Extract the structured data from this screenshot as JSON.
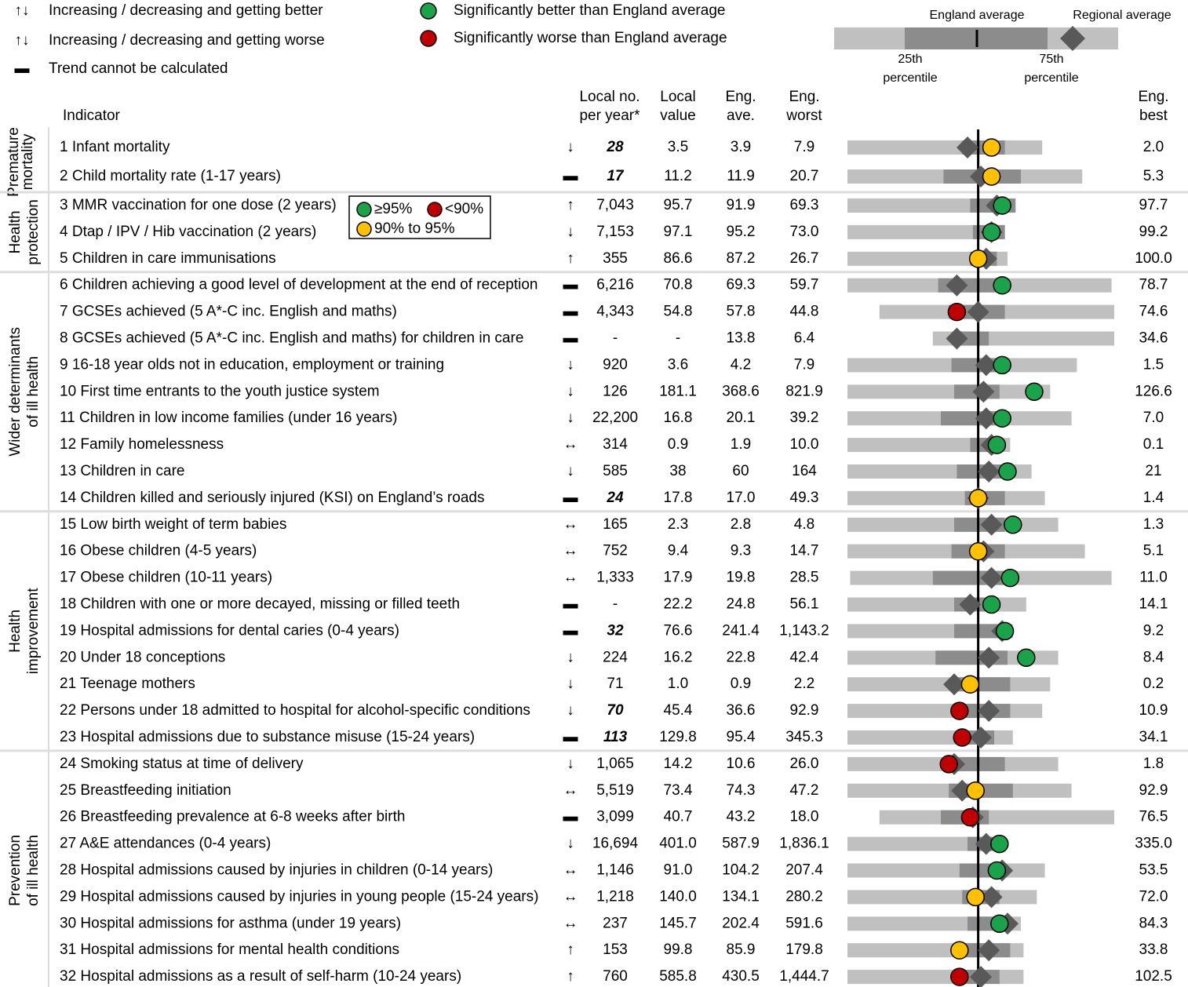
{
  "legend": {
    "trends": [
      {
        "symbol": "↑↓",
        "color": "#1aa34a",
        "label": "Increasing / decreasing and getting better"
      },
      {
        "symbol": "↑↓",
        "color": "#c00000",
        "label": "Increasing / decreasing and getting worse"
      },
      {
        "symbol": "▬",
        "color": "#000000",
        "label": "Trend cannot be calculated"
      }
    ],
    "markers": [
      {
        "color": "#1aa34a",
        "label": "Significantly better than England average"
      },
      {
        "color": "#c00000",
        "label": "Significantly worse than England average"
      }
    ],
    "spine": {
      "england": "England average",
      "regional": "Regional average",
      "p25": [
        "25th",
        "percentile"
      ],
      "p75": [
        "75th",
        "percentile"
      ]
    }
  },
  "header": {
    "indicator": "Indicator",
    "local_no": [
      "Local no.",
      "per year*"
    ],
    "local_value": [
      "Local",
      "value"
    ],
    "eng_ave": [
      "Eng.",
      "ave."
    ],
    "eng_worst": [
      "Eng.",
      "worst"
    ],
    "eng_best": [
      "Eng.",
      "best"
    ]
  },
  "inset": [
    {
      "label": "≥95%",
      "color": "#1aa34a"
    },
    {
      "label": "<90%",
      "color": "#c00000"
    },
    {
      "label": "90% to 95%",
      "color": "#ffc000"
    }
  ],
  "spine_settings": {
    "scale": [
      0,
      100
    ],
    "england_line": 49,
    "light": "#c0c0c0",
    "dark": "#8c8c8c",
    "regional": "#595959"
  },
  "groups": [
    {
      "label": [
        "Premature",
        "mortality"
      ],
      "rows": [
        {
          "indicator": "1 Infant mortality",
          "trend": "↓",
          "trend_color": "#1aa34a",
          "local_no": "28",
          "bold": true,
          "local_value": "3.5",
          "eng_ave": "3.9",
          "eng_worst": "7.9",
          "eng_best": "2.0",
          "spine": [
            0,
            43,
            59,
            73,
            45,
            54
          ],
          "local_color": "#ffc000"
        },
        {
          "indicator": "2 Child mortality rate (1-17 years)",
          "trend": "▬",
          "trend_color": "#000000",
          "local_no": "17",
          "bold": true,
          "local_value": "11.2",
          "eng_ave": "11.9",
          "eng_worst": "20.7",
          "eng_best": "5.3",
          "spine": [
            0,
            36,
            65,
            88,
            50,
            54
          ],
          "local_color": "#ffc000"
        }
      ]
    },
    {
      "label": [
        "Health",
        "protection"
      ],
      "rows": [
        {
          "indicator": "3 MMR vaccination for one dose (2 years)",
          "trend": "↑",
          "trend_color": "#1aa34a",
          "local_no": "7,043",
          "local_value": "95.7",
          "eng_ave": "91.9",
          "eng_worst": "69.3",
          "eng_best": "97.7",
          "spine": [
            0,
            46,
            63,
            63,
            56,
            58
          ],
          "local_color": "#1aa34a"
        },
        {
          "indicator": "4 Dtap / IPV / Hib vaccination (2 years)",
          "trend": "↓",
          "trend_color": "#c00000",
          "local_no": "7,153",
          "local_value": "97.1",
          "eng_ave": "95.2",
          "eng_worst": "73.0",
          "eng_best": "99.2",
          "spine": [
            0,
            47,
            59,
            59,
            54,
            54
          ],
          "local_color": "#1aa34a"
        },
        {
          "indicator": "5 Children in care immunisations",
          "trend": "↑",
          "trend_color": "#1aa34a",
          "local_no": "355",
          "local_value": "86.6",
          "eng_ave": "87.2",
          "eng_worst": "26.7",
          "eng_best": "100.0",
          "spine": [
            0,
            46,
            56,
            60,
            52,
            49
          ],
          "local_color": "#ffc000"
        }
      ]
    },
    {
      "label": [
        "Wider determinants",
        "of ill health"
      ],
      "rows": [
        {
          "indicator": "6 Children achieving a good level of development at the end of reception",
          "trend": "▬",
          "trend_color": "#000000",
          "local_no": "6,216",
          "local_value": "70.8",
          "eng_ave": "69.3",
          "eng_worst": "59.7",
          "eng_best": "78.7",
          "spine": [
            0,
            34,
            58,
            99,
            41,
            58
          ],
          "local_color": "#1aa34a"
        },
        {
          "indicator": "7 GCSEs achieved (5 A*-C inc. English and maths)",
          "trend": "▬",
          "trend_color": "#000000",
          "local_no": "4,343",
          "local_value": "54.8",
          "eng_ave": "57.8",
          "eng_worst": "44.8",
          "eng_best": "74.6",
          "spine": [
            12,
            38,
            59,
            100,
            49,
            41
          ],
          "local_color": "#c00000"
        },
        {
          "indicator": "8 GCSEs achieved (5 A*-C inc. English and maths) for children in care",
          "trend": "▬",
          "trend_color": "#000000",
          "local_no": "-",
          "local_value": "-",
          "eng_ave": "13.8",
          "eng_worst": "6.4",
          "eng_best": "34.6",
          "spine": [
            32,
            40,
            53,
            100,
            41,
            null
          ]
        },
        {
          "indicator": "9 16-18 year olds not in education, employment or training",
          "trend": "↓",
          "trend_color": "#1aa34a",
          "local_no": "920",
          "local_value": "3.6",
          "eng_ave": "4.2",
          "eng_worst": "7.9",
          "eng_best": "1.5",
          "spine": [
            0,
            39,
            56,
            86,
            52,
            58
          ],
          "local_color": "#1aa34a"
        },
        {
          "indicator": "10 First time entrants to the youth justice system",
          "trend": "↓",
          "trend_color": "#1aa34a",
          "local_no": "126",
          "local_value": "181.1",
          "eng_ave": "368.6",
          "eng_worst": "821.9",
          "eng_best": "126.6",
          "spine": [
            0,
            40,
            57,
            76,
            51,
            70
          ],
          "local_color": "#1aa34a"
        },
        {
          "indicator": "11 Children in low income families (under 16 years)",
          "trend": "↓",
          "trend_color": "#1aa34a",
          "local_no": "22,200",
          "local_value": "16.8",
          "eng_ave": "20.1",
          "eng_worst": "39.2",
          "eng_best": "7.0",
          "spine": [
            0,
            35,
            59,
            84,
            52,
            58
          ],
          "local_color": "#1aa34a"
        },
        {
          "indicator": "12 Family homelessness",
          "trend": "↔",
          "trend_color": "#ffc000",
          "local_no": "314",
          "local_value": "0.9",
          "eng_ave": "1.9",
          "eng_worst": "10.0",
          "eng_best": "0.1",
          "spine": [
            0,
            46,
            57,
            61,
            54,
            56
          ],
          "local_color": "#1aa34a"
        },
        {
          "indicator": "13 Children in care",
          "trend": "↓",
          "trend_color": "#1aa34a",
          "local_no": "585",
          "local_value": "38",
          "eng_ave": "60",
          "eng_worst": "164",
          "eng_best": "21",
          "spine": [
            0,
            41,
            59,
            69,
            53,
            60
          ],
          "local_color": "#1aa34a"
        },
        {
          "indicator": "14 Children killed and seriously injured (KSI) on England’s roads",
          "trend": "▬",
          "trend_color": "#000000",
          "local_no": "24",
          "bold": true,
          "local_value": "17.8",
          "eng_ave": "17.0",
          "eng_worst": "49.3",
          "eng_best": "1.4",
          "spine": [
            0,
            44,
            59,
            74,
            49,
            49
          ],
          "local_color": "#ffc000"
        }
      ]
    },
    {
      "label": [
        "Health",
        "improvement"
      ],
      "rows": [
        {
          "indicator": "15 Low birth weight of term babies",
          "trend": "↔",
          "trend_color": "#ffc000",
          "local_no": "165",
          "local_value": "2.3",
          "eng_ave": "2.8",
          "eng_worst": "4.8",
          "eng_best": "1.3",
          "spine": [
            0,
            40,
            59,
            79,
            54,
            62
          ],
          "local_color": "#1aa34a"
        },
        {
          "indicator": "16 Obese children (4-5 years)",
          "trend": "↔",
          "trend_color": "#ffc000",
          "local_no": "752",
          "local_value": "9.4",
          "eng_ave": "9.3",
          "eng_worst": "14.7",
          "eng_best": "5.1",
          "spine": [
            0,
            39,
            59,
            89,
            51,
            49
          ],
          "local_color": "#ffc000"
        },
        {
          "indicator": "17 Obese children (10-11 years)",
          "trend": "↔",
          "trend_color": "#ffc000",
          "local_no": "1,333",
          "local_value": "17.9",
          "eng_ave": "19.8",
          "eng_worst": "28.5",
          "eng_best": "11.0",
          "spine": [
            1,
            32,
            59,
            99,
            54,
            61
          ],
          "local_color": "#1aa34a"
        },
        {
          "indicator": "18 Children with one or more decayed, missing or filled teeth",
          "trend": "▬",
          "trend_color": "#000000",
          "local_no": "-",
          "local_value": "22.2",
          "eng_ave": "24.8",
          "eng_worst": "56.1",
          "eng_best": "14.1",
          "spine": [
            0,
            40,
            56,
            67,
            46,
            54
          ],
          "local_color": "#1aa34a"
        },
        {
          "indicator": "19 Hospital admissions for dental caries (0-4 years)",
          "trend": "▬",
          "trend_color": "#000000",
          "local_no": "32",
          "bold": true,
          "local_value": "76.6",
          "eng_ave": "241.4",
          "eng_worst": "1,143.2",
          "eng_best": "9.2",
          "spine": [
            0,
            40,
            59,
            62,
            58,
            59
          ],
          "local_color": "#1aa34a"
        },
        {
          "indicator": "20 Under 18 conceptions",
          "trend": "↓",
          "trend_color": "#1aa34a",
          "local_no": "224",
          "local_value": "16.2",
          "eng_ave": "22.8",
          "eng_worst": "42.4",
          "eng_best": "8.4",
          "spine": [
            0,
            33,
            60,
            79,
            53,
            67
          ],
          "local_color": "#1aa34a"
        },
        {
          "indicator": "21 Teenage mothers",
          "trend": "↓",
          "trend_color": "#1aa34a",
          "local_no": "71",
          "local_value": "1.0",
          "eng_ave": "0.9",
          "eng_worst": "2.2",
          "eng_best": "0.2",
          "spine": [
            0,
            40,
            61,
            76,
            40,
            46
          ],
          "local_color": "#ffc000"
        },
        {
          "indicator": "22 Persons under 18 admitted to hospital for alcohol-specific conditions",
          "trend": "↓",
          "trend_color": "#1aa34a",
          "local_no": "70",
          "bold": true,
          "local_value": "45.4",
          "eng_ave": "36.6",
          "eng_worst": "92.9",
          "eng_best": "10.9",
          "spine": [
            0,
            41,
            61,
            73,
            53,
            42
          ],
          "local_color": "#c00000"
        },
        {
          "indicator": "23 Hospital admissions due to substance misuse (15-24 years)",
          "trend": "▬",
          "trend_color": "#000000",
          "local_no": "113",
          "bold": true,
          "local_value": "129.8",
          "eng_ave": "95.4",
          "eng_worst": "345.3",
          "eng_best": "34.1",
          "spine": [
            0,
            44,
            55,
            62,
            50,
            43
          ],
          "local_color": "#c00000"
        }
      ]
    },
    {
      "label": [
        "Prevention",
        "of ill health"
      ],
      "rows": [
        {
          "indicator": "24 Smoking status at time of delivery",
          "trend": "↓",
          "trend_color": "#1aa34a",
          "local_no": "1,065",
          "local_value": "14.2",
          "eng_ave": "10.6",
          "eng_worst": "26.0",
          "eng_best": "1.8",
          "spine": [
            0,
            38,
            59,
            79,
            40,
            38
          ],
          "local_color": "#c00000"
        },
        {
          "indicator": "25 Breastfeeding initiation",
          "trend": "↔",
          "trend_color": "#ffc000",
          "local_no": "5,519",
          "local_value": "73.4",
          "eng_ave": "74.3",
          "eng_worst": "47.2",
          "eng_best": "92.9",
          "spine": [
            0,
            38,
            62,
            84,
            43,
            48
          ],
          "local_color": "#ffc000"
        },
        {
          "indicator": "26 Breastfeeding prevalence at 6-8 weeks after birth",
          "trend": "▬",
          "trend_color": "#000000",
          "local_no": "3,099",
          "local_value": "40.7",
          "eng_ave": "43.2",
          "eng_worst": "18.0",
          "eng_best": "76.5",
          "spine": [
            12,
            35,
            53,
            100,
            47,
            46
          ],
          "local_color": "#c00000"
        },
        {
          "indicator": "27 A&E attendances (0-4 years)",
          "trend": "↓",
          "trend_color": "#1aa34a",
          "local_no": "16,694",
          "local_value": "401.0",
          "eng_ave": "587.9",
          "eng_worst": "1,836.1",
          "eng_best": "335.0",
          "spine": [
            0,
            45,
            55,
            57,
            52,
            57
          ],
          "local_color": "#1aa34a"
        },
        {
          "indicator": "28 Hospital admissions caused by injuries in children (0-14 years)",
          "trend": "↔",
          "trend_color": "#ffc000",
          "local_no": "1,146",
          "local_value": "91.0",
          "eng_ave": "104.2",
          "eng_worst": "207.4",
          "eng_best": "53.5",
          "spine": [
            0,
            42,
            59,
            74,
            58,
            56
          ],
          "local_color": "#1aa34a"
        },
        {
          "indicator": "29 Hospital admissions caused by injuries in young people (15-24 years)",
          "trend": "↔",
          "trend_color": "#ffc000",
          "local_no": "1,218",
          "local_value": "140.0",
          "eng_ave": "134.1",
          "eng_worst": "280.2",
          "eng_best": "72.0",
          "spine": [
            0,
            43,
            57,
            71,
            54,
            48
          ],
          "local_color": "#ffc000"
        },
        {
          "indicator": "30 Hospital admissions for asthma (under 19 years)",
          "trend": "↔",
          "trend_color": "#ffc000",
          "local_no": "237",
          "local_value": "145.7",
          "eng_ave": "202.4",
          "eng_worst": "591.6",
          "eng_best": "84.3",
          "spine": [
            0,
            45,
            60,
            65,
            60,
            57
          ],
          "local_color": "#1aa34a"
        },
        {
          "indicator": "31 Hospital admissions for mental health conditions",
          "trend": "↑",
          "trend_color": "#c00000",
          "local_no": "153",
          "local_value": "99.8",
          "eng_ave": "85.9",
          "eng_worst": "179.8",
          "eng_best": "33.8",
          "spine": [
            0,
            43,
            61,
            66,
            53,
            42
          ],
          "local_color": "#ffc000"
        },
        {
          "indicator": "32 Hospital admissions as a result of self-harm (10-24 years)",
          "trend": "↑",
          "trend_color": "#c00000",
          "local_no": "760",
          "local_value": "585.8",
          "eng_ave": "430.5",
          "eng_worst": "1,444.7",
          "eng_best": "102.5",
          "spine": [
            0,
            41,
            57,
            66,
            50,
            42
          ],
          "local_color": "#c00000"
        }
      ]
    }
  ]
}
